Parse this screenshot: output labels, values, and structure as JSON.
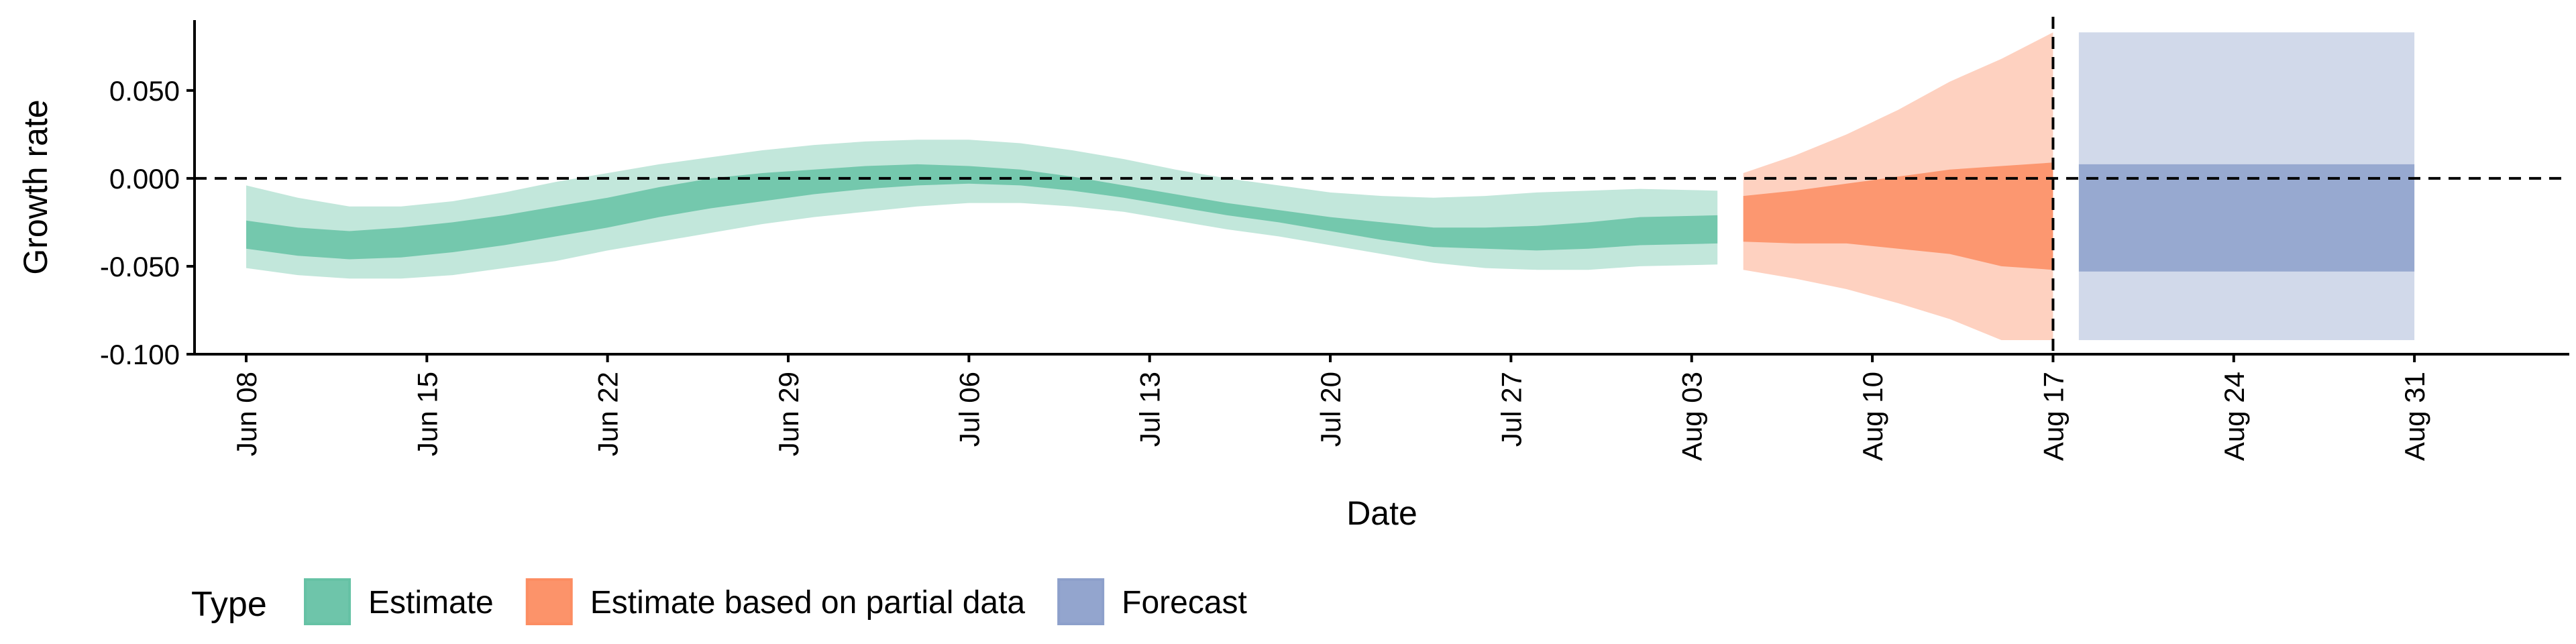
{
  "chart_data": {
    "type": "area",
    "xlabel": "Date",
    "ylabel": "Growth rate",
    "ylim": [
      -0.1,
      0.09
    ],
    "xlim": [
      "2020-06-06",
      "2020-09-06"
    ],
    "y_ticks": [
      {
        "value": -0.1,
        "label": "-0.100"
      },
      {
        "value": -0.05,
        "label": "-0.050"
      },
      {
        "value": 0.0,
        "label": "0.000"
      },
      {
        "value": 0.05,
        "label": "0.050"
      }
    ],
    "x_ticks": [
      {
        "date": "2020-06-08",
        "label": "Jun 08"
      },
      {
        "date": "2020-06-15",
        "label": "Jun 15"
      },
      {
        "date": "2020-06-22",
        "label": "Jun 22"
      },
      {
        "date": "2020-06-29",
        "label": "Jun 29"
      },
      {
        "date": "2020-07-06",
        "label": "Jul 06"
      },
      {
        "date": "2020-07-13",
        "label": "Jul 13"
      },
      {
        "date": "2020-07-20",
        "label": "Jul 20"
      },
      {
        "date": "2020-07-27",
        "label": "Jul 27"
      },
      {
        "date": "2020-08-03",
        "label": "Aug 03"
      },
      {
        "date": "2020-08-10",
        "label": "Aug 10"
      },
      {
        "date": "2020-08-17",
        "label": "Aug 17"
      },
      {
        "date": "2020-08-24",
        "label": "Aug 24"
      },
      {
        "date": "2020-08-31",
        "label": "Aug 31"
      }
    ],
    "reference_lines": [
      {
        "axis": "y",
        "value": 0.0,
        "style": "dashed"
      },
      {
        "axis": "x",
        "date": "2020-08-17",
        "style": "dashed"
      }
    ],
    "legend": {
      "title": "Type",
      "placement": "bottom"
    },
    "series": [
      {
        "name": "Estimate",
        "color": "#66c2a5",
        "x": [
          "2020-06-08",
          "2020-06-10",
          "2020-06-12",
          "2020-06-14",
          "2020-06-16",
          "2020-06-18",
          "2020-06-20",
          "2020-06-22",
          "2020-06-24",
          "2020-06-26",
          "2020-06-28",
          "2020-06-30",
          "2020-07-02",
          "2020-07-04",
          "2020-07-06",
          "2020-07-08",
          "2020-07-10",
          "2020-07-12",
          "2020-07-14",
          "2020-07-16",
          "2020-07-18",
          "2020-07-20",
          "2020-07-22",
          "2020-07-24",
          "2020-07-26",
          "2020-07-28",
          "2020-07-30",
          "2020-08-01",
          "2020-08-04"
        ],
        "lower90": [
          -0.051,
          -0.055,
          -0.057,
          -0.057,
          -0.055,
          -0.051,
          -0.047,
          -0.041,
          -0.036,
          -0.031,
          -0.026,
          -0.022,
          -0.019,
          -0.016,
          -0.014,
          -0.014,
          -0.016,
          -0.019,
          -0.024,
          -0.029,
          -0.033,
          -0.038,
          -0.043,
          -0.048,
          -0.051,
          -0.052,
          -0.052,
          -0.05,
          -0.049
        ],
        "lower50": [
          -0.04,
          -0.044,
          -0.046,
          -0.045,
          -0.042,
          -0.038,
          -0.033,
          -0.028,
          -0.022,
          -0.017,
          -0.013,
          -0.009,
          -0.006,
          -0.004,
          -0.003,
          -0.004,
          -0.007,
          -0.011,
          -0.016,
          -0.021,
          -0.025,
          -0.03,
          -0.035,
          -0.039,
          -0.04,
          -0.041,
          -0.04,
          -0.038,
          -0.037
        ],
        "upper50": [
          -0.024,
          -0.028,
          -0.03,
          -0.028,
          -0.025,
          -0.021,
          -0.016,
          -0.011,
          -0.005,
          0.0,
          0.003,
          0.005,
          0.007,
          0.008,
          0.007,
          0.005,
          0.001,
          -0.004,
          -0.009,
          -0.014,
          -0.018,
          -0.022,
          -0.025,
          -0.028,
          -0.028,
          -0.027,
          -0.025,
          -0.022,
          -0.021
        ],
        "upper90": [
          -0.004,
          -0.011,
          -0.016,
          -0.016,
          -0.013,
          -0.008,
          -0.002,
          0.003,
          0.008,
          0.012,
          0.016,
          0.019,
          0.021,
          0.022,
          0.022,
          0.02,
          0.016,
          0.011,
          0.005,
          0.0,
          -0.004,
          -0.008,
          -0.01,
          -0.011,
          -0.01,
          -0.008,
          -0.007,
          -0.006,
          -0.007
        ]
      },
      {
        "name": "Estimate based on partial data",
        "color": "#fc8d62",
        "x": [
          "2020-08-05",
          "2020-08-07",
          "2020-08-09",
          "2020-08-11",
          "2020-08-13",
          "2020-08-15",
          "2020-08-17"
        ],
        "lower90": [
          -0.052,
          -0.057,
          -0.063,
          -0.071,
          -0.08,
          -0.092,
          -0.092
        ],
        "lower50": [
          -0.036,
          -0.037,
          -0.037,
          -0.04,
          -0.043,
          -0.05,
          -0.052
        ],
        "upper50": [
          -0.01,
          -0.007,
          -0.003,
          0.001,
          0.005,
          0.007,
          0.009
        ],
        "upper90": [
          0.003,
          0.013,
          0.025,
          0.039,
          0.055,
          0.068,
          0.083
        ]
      },
      {
        "name": "Forecast",
        "color": "#8da0cb",
        "x": [
          "2020-08-18",
          "2020-08-31"
        ],
        "lower90": [
          -0.092,
          -0.092
        ],
        "lower50": [
          -0.053,
          -0.053
        ],
        "upper50": [
          0.008,
          0.008
        ],
        "upper90": [
          0.083,
          0.083
        ]
      }
    ]
  }
}
